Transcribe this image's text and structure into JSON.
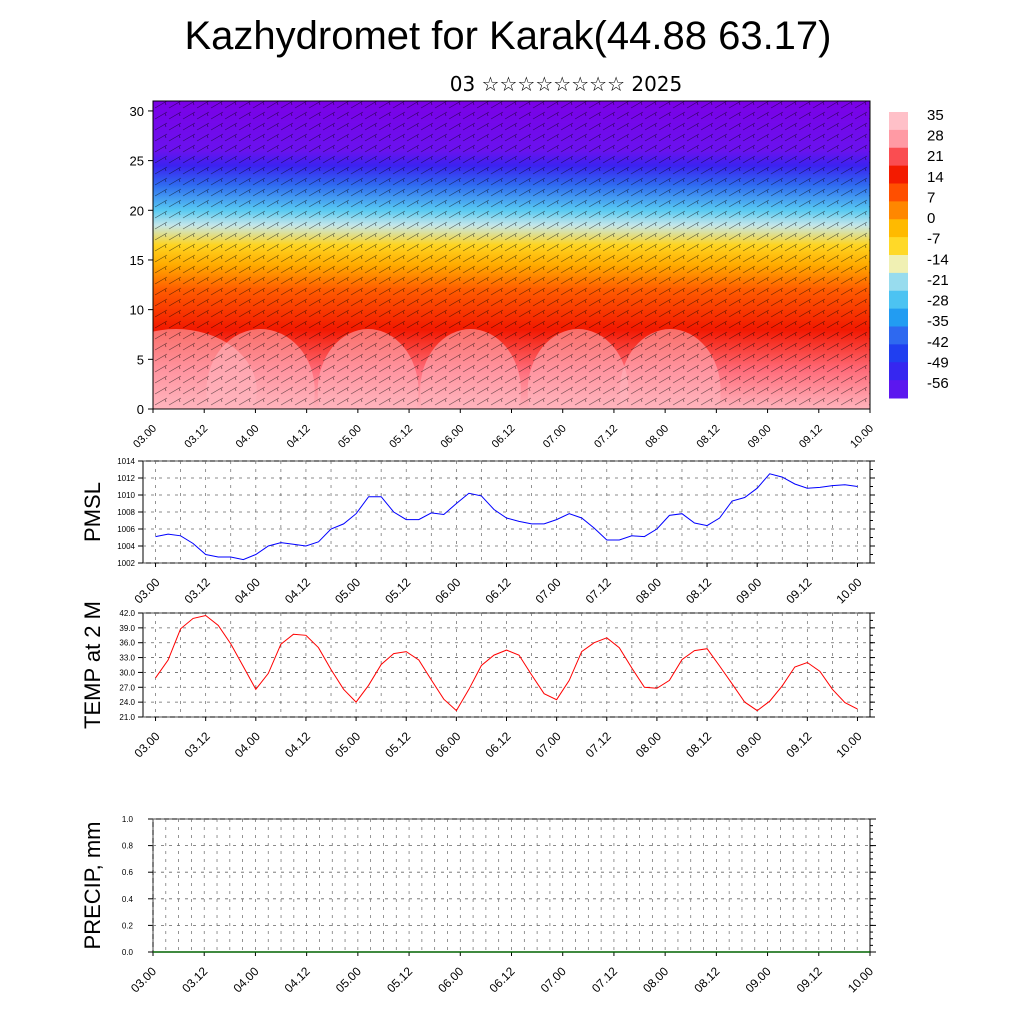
{
  "title": "Kazhydromet for Karak(44.88 63.17)",
  "subtitle": "03 ☆☆☆☆☆☆☆☆ 2025",
  "colorbar": {
    "labels": [
      "35",
      "28",
      "21",
      "14",
      "7",
      "0",
      "-7",
      "-14",
      "-21",
      "-28",
      "-35",
      "-42",
      "-49",
      "-56"
    ],
    "colors": [
      "#c800c8",
      "#7a1fe6",
      "#3d1ee0",
      "#2830e6",
      "#2f6cf0",
      "#21a7f0",
      "#57d4f2",
      "#bfe8f0",
      "#fff08a",
      "#ffd21e",
      "#ff9a00",
      "#ff5a00",
      "#ff2000",
      "#e00000",
      "#ff9aa5",
      "#ffd0d8"
    ]
  },
  "chart_data": [
    {
      "type": "heatmap",
      "name": "cross-section",
      "x_tick_labels": [
        "03.00",
        "03.12",
        "04.00",
        "04.12",
        "05.00",
        "05.12",
        "06.00",
        "06.12",
        "07.00",
        "07.12",
        "08.00",
        "08.12",
        "09.00",
        "09.12",
        "10.00"
      ],
      "y_tick_labels": [
        "0",
        "5",
        "10",
        "15",
        "20",
        "25",
        "30"
      ],
      "ylim": [
        0,
        31
      ],
      "levels": [
        -56,
        -49,
        -42,
        -35,
        -28,
        -21,
        -14,
        -7,
        0,
        7,
        14,
        21,
        28,
        35
      ],
      "profile": [
        {
          "z": 0,
          "t": 34
        },
        {
          "z": 4,
          "t": 28
        },
        {
          "z": 8,
          "t": 20
        },
        {
          "z": 12,
          "t": 12
        },
        {
          "z": 14.5,
          "t": 3
        },
        {
          "z": 16.5,
          "t": -4
        },
        {
          "z": 18.5,
          "t": -14
        },
        {
          "z": 20,
          "t": -22
        },
        {
          "z": 22.5,
          "t": -35
        },
        {
          "z": 24.5,
          "t": -49
        },
        {
          "z": 26,
          "t": -56
        },
        {
          "z": 31,
          "t": -60
        }
      ],
      "warm_cores_x": [
        "03.06",
        "04.06",
        "05.12",
        "06.12",
        "07.12",
        "08.06"
      ]
    },
    {
      "type": "line",
      "ylabel": "PMSL",
      "color": "#0000ff",
      "ylim": [
        1002,
        1014
      ],
      "y_ticks": [
        "1002",
        "1004",
        "1006",
        "1008",
        "1010",
        "1012",
        "1014"
      ],
      "x_tick_labels": [
        "03.00",
        "03.12",
        "04.00",
        "04.12",
        "05.00",
        "05.12",
        "06.00",
        "06.12",
        "07.00",
        "07.12",
        "08.00",
        "08.12",
        "09.00",
        "09.12",
        "10.00"
      ],
      "values": [
        1005.1,
        1005.4,
        1005.2,
        1004.3,
        1003.0,
        1002.7,
        1002.7,
        1002.4,
        1003.0,
        1004.0,
        1004.4,
        1004.2,
        1004.0,
        1004.5,
        1006.0,
        1006.6,
        1007.8,
        1009.8,
        1009.8,
        1008.0,
        1007.1,
        1007.1,
        1007.9,
        1007.7,
        1009.0,
        1010.2,
        1009.9,
        1008.3,
        1007.3,
        1006.9,
        1006.6,
        1006.6,
        1007.1,
        1007.8,
        1007.3,
        1006.1,
        1004.7,
        1004.7,
        1005.2,
        1005.1,
        1006.0,
        1007.6,
        1007.8,
        1006.7,
        1006.4,
        1007.3,
        1009.3,
        1009.7,
        1010.8,
        1012.5,
        1012.1,
        1011.3,
        1010.8,
        1010.9,
        1011.1,
        1011.2,
        1011.0
      ]
    },
    {
      "type": "line",
      "ylabel": "TEMP at 2 M",
      "color": "#ff0000",
      "ylim": [
        21,
        42
      ],
      "y_ticks": [
        "21.0",
        "24.0",
        "27.0",
        "30.0",
        "33.0",
        "36.0",
        "39.0",
        "42.0"
      ],
      "x_tick_labels": [
        "03.00",
        "03.12",
        "04.00",
        "04.12",
        "05.00",
        "05.12",
        "06.00",
        "06.12",
        "07.00",
        "07.12",
        "08.00",
        "08.12",
        "09.00",
        "09.12",
        "10.00"
      ],
      "values": [
        28.9,
        32.5,
        38.8,
        40.9,
        41.5,
        39.5,
        35.8,
        31.2,
        26.6,
        29.8,
        35.7,
        37.7,
        37.5,
        35.0,
        30.6,
        26.6,
        24.0,
        27.4,
        31.6,
        33.8,
        34.2,
        32.5,
        28.5,
        24.6,
        22.3,
        26.6,
        31.4,
        33.5,
        34.5,
        33.5,
        29.5,
        25.7,
        24.5,
        28.4,
        34.2,
        36.0,
        37.0,
        35.0,
        30.9,
        27.0,
        26.8,
        28.4,
        32.6,
        34.4,
        34.8,
        31.3,
        27.7,
        24.0,
        22.3,
        24.2,
        27.3,
        31.1,
        32.0,
        30.2,
        26.6,
        23.9,
        22.6
      ]
    },
    {
      "type": "line",
      "ylabel": "PRECIP, mm",
      "color": "#006400",
      "ylim": [
        0,
        1
      ],
      "y_ticks": [
        "0.0",
        "0.2",
        "0.4",
        "0.6",
        "0.8",
        "1.0"
      ],
      "x_tick_labels": [
        "03.00",
        "03.12",
        "04.00",
        "04.12",
        "05.00",
        "05.12",
        "06.00",
        "06.12",
        "07.00",
        "07.12",
        "08.00",
        "08.12",
        "09.00",
        "09.12",
        "10.00"
      ],
      "values": [
        0,
        0,
        0,
        0,
        0,
        0,
        0,
        0,
        0,
        0,
        0,
        0,
        0,
        0,
        0,
        0,
        0,
        0,
        0,
        0,
        0,
        0,
        0,
        0,
        0,
        0,
        0,
        0,
        0,
        0,
        0,
        0,
        0,
        0,
        0,
        0,
        0,
        0,
        0,
        0,
        0,
        0,
        0,
        0,
        0,
        0,
        0,
        0,
        0,
        0,
        0,
        0,
        0,
        0,
        0,
        0,
        0
      ]
    }
  ]
}
